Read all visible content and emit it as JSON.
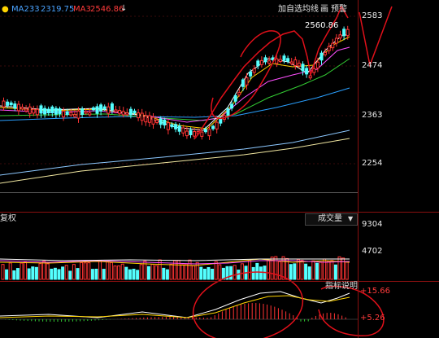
{
  "legend": {
    "ma233": {
      "label": "MA233",
      "value": "2319.75",
      "color": "#4aa3ff"
    },
    "ma3": {
      "label": "MA3",
      "value": "2546.86",
      "color": "#ff3b3b"
    },
    "arrow": "↓"
  },
  "toolbar": {
    "buttons": [
      "加自选",
      "均线",
      "画",
      "预警"
    ]
  },
  "price_axis": {
    "ticks": [
      "2583",
      "2474",
      "2363",
      "2254"
    ]
  },
  "high_label": "2560.86",
  "volume_panel": {
    "left_label": "复权",
    "selector": {
      "label": "成交量",
      "arrow": "▼"
    },
    "ticks": [
      "9304",
      "4702"
    ]
  },
  "indicator_panel": {
    "menu_label": "指标说明",
    "ticks": [
      "+15.66",
      "+5.26"
    ]
  },
  "colors": {
    "up": "#ff3333",
    "down": "#54ffff",
    "ma5": "#ffffff",
    "ma10": "#ffd400",
    "ma20": "#ff50ff",
    "ma30": "#33cc33",
    "ma60": "#2aa0ff",
    "ma120": "#8cc8ff",
    "ma250": "#f0e6a0",
    "annotation": "#e0101a",
    "separator": "#8a1010"
  }
}
